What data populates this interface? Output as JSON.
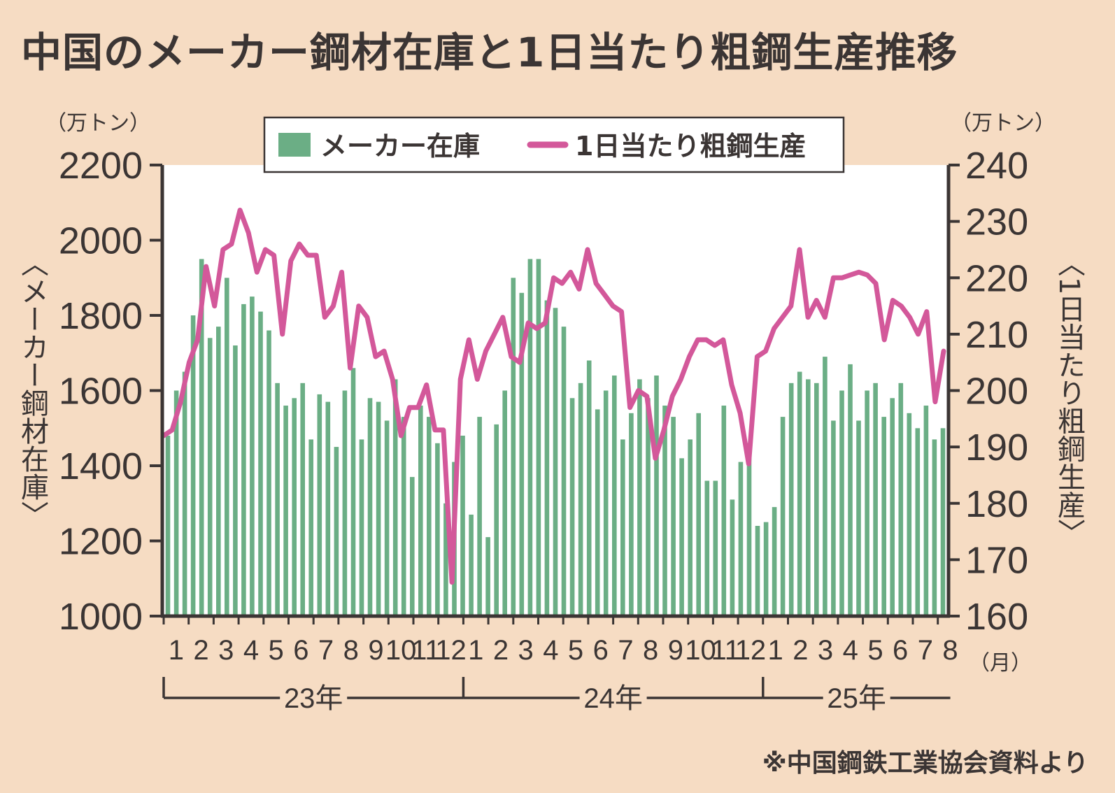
{
  "title": "中国のメーカー鋼材在庫と1日当たり粗鋼生産推移",
  "source": "※中国鋼鉄工業協会資料より",
  "colors": {
    "background": "#f6dcc3",
    "plot": "#ffffff",
    "bar": "#6bae85",
    "line": "#d3589a",
    "axis": "#3b3534"
  },
  "chart_data": {
    "type": "bar+line",
    "legend": {
      "position": "top-center",
      "bar_label": "メーカー在庫",
      "line_label": "1日当たり粗鋼生産"
    },
    "left_axis": {
      "unit": "（万トン）",
      "label": "〈メーカー鋼材在庫〉",
      "ylim": [
        1000,
        2200
      ],
      "ticks": [
        1000,
        1200,
        1400,
        1600,
        1800,
        2000,
        2200
      ]
    },
    "right_axis": {
      "unit": "（万トン）",
      "label": "〈1日当たり粗鋼生産〉",
      "ylim": [
        160,
        240
      ],
      "ticks": [
        160,
        170,
        180,
        190,
        200,
        210,
        220,
        230,
        240
      ]
    },
    "x_axis": {
      "month_unit": "（月）",
      "month_labels": [
        "1",
        "2",
        "3",
        "4",
        "5",
        "6",
        "7",
        "8",
        "9",
        "10",
        "11",
        "12",
        "1",
        "2",
        "3",
        "4",
        "5",
        "6",
        "7",
        "8",
        "9",
        "10",
        "11",
        "12",
        "1",
        "2",
        "3",
        "4",
        "5",
        "6",
        "7",
        "8"
      ],
      "years": [
        {
          "label": "23年",
          "start": 0,
          "end": 12
        },
        {
          "label": "24年",
          "start": 12,
          "end": 24
        },
        {
          "label": "25年",
          "start": 24,
          "end": 31.5
        }
      ]
    },
    "inventory_series": {
      "name": "メーカー在庫",
      "values": [
        1480,
        1600,
        1650,
        1800,
        1950,
        1740,
        1770,
        1900,
        1720,
        1830,
        1850,
        1810,
        1760,
        1620,
        1560,
        1580,
        1620,
        1470,
        1590,
        1570,
        1450,
        1600,
        1660,
        1470,
        1580,
        1570,
        1520,
        1630,
        1530,
        1370,
        1560,
        1530,
        1460,
        1300,
        1410,
        1480,
        1270,
        1530,
        1210,
        1510,
        1600,
        1900,
        1860,
        1950,
        1950,
        1840,
        1820,
        1770,
        1580,
        1620,
        1680,
        1550,
        1600,
        1640,
        1470,
        1540,
        1630,
        1580,
        1640,
        1560,
        1530,
        1420,
        1470,
        1540,
        1360,
        1360,
        1560,
        1310,
        1410,
        1460,
        1240,
        1250,
        1290,
        1530,
        1620,
        1650,
        1630,
        1620,
        1690,
        1520,
        1600,
        1670,
        1520,
        1600,
        1620,
        1530,
        1580,
        1620,
        1540,
        1500,
        1560,
        1470,
        1500
      ]
    },
    "production_series": {
      "name": "1日当たり粗鋼生産",
      "values": [
        192,
        193,
        198,
        205,
        209,
        222,
        215,
        225,
        226,
        232,
        228,
        221,
        225,
        224,
        210,
        223,
        226,
        224,
        224,
        213,
        215,
        221,
        204,
        215,
        213,
        206,
        207,
        202,
        192,
        197,
        197,
        201,
        193,
        193,
        166,
        202,
        209,
        202,
        207,
        210,
        213,
        206,
        205,
        212,
        211,
        212,
        220,
        219,
        221,
        218,
        225,
        219,
        217,
        215,
        214,
        197,
        200,
        199,
        188,
        193,
        199,
        202,
        206,
        209,
        209,
        208,
        209,
        201,
        196,
        187,
        206,
        207,
        211,
        213,
        215,
        225,
        213,
        216,
        213,
        220,
        220,
        220.5,
        221,
        220.5,
        219,
        209,
        216,
        215,
        213,
        210,
        214,
        198,
        207
      ]
    }
  }
}
